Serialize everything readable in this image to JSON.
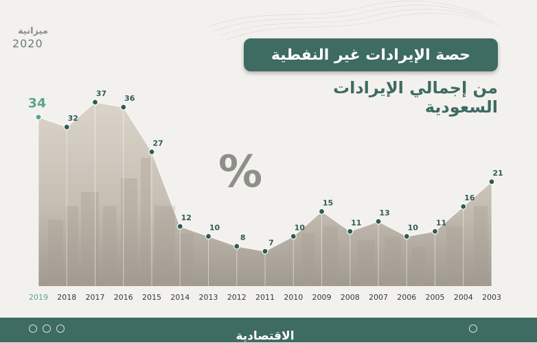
{
  "header": {
    "title": "حصة الإيرادات غير النفطية",
    "subtitle": "من إجمالي الإيرادات السعودية"
  },
  "logo": {
    "word": "ميزانية",
    "year": "2020"
  },
  "footer": {
    "brand": "الاقتصادية"
  },
  "colors": {
    "accent": "#3e6b62",
    "highlight": "#5aa58d",
    "dot": "#2f5c54",
    "axis_label": "#2f3b39",
    "percent_sign": "#8f8f8a"
  },
  "icons": [
    "instagram-icon",
    "facebook-icon",
    "twitter-icon",
    "website-icon"
  ],
  "chart_data": {
    "type": "area",
    "unit_label": "%",
    "x": [
      "2019",
      "2018",
      "2017",
      "2016",
      "2015",
      "2014",
      "2013",
      "2012",
      "2011",
      "2010",
      "2009",
      "2008",
      "2007",
      "2006",
      "2005",
      "2004",
      "2003"
    ],
    "values": [
      34,
      32,
      37,
      36,
      27,
      12,
      10,
      8,
      7,
      10,
      15,
      11,
      13,
      10,
      11,
      16,
      21
    ],
    "highlight_index": 0,
    "ylim": [
      0,
      45
    ],
    "grid": false
  }
}
